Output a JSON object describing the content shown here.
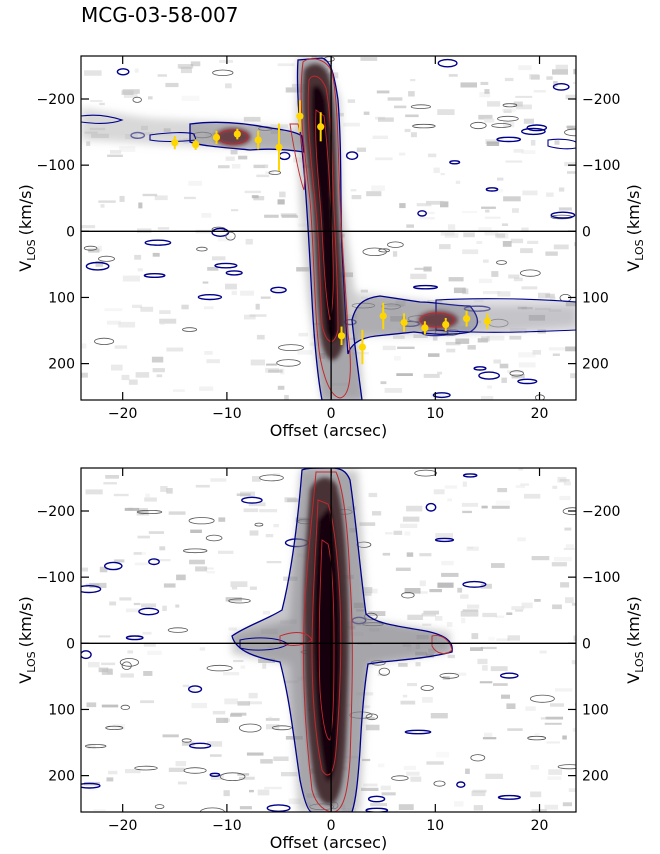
{
  "figure_title": "MCG-03-58-007",
  "colors": {
    "contour_outer": "#00008b",
    "contour_inner": "#c0282c",
    "contour_noise": "#555555",
    "points": "#ffd700",
    "axes": "#000000"
  },
  "chart_data": [
    {
      "type": "heatmap",
      "panel": "top",
      "xlabel": "Offset (arcsec)",
      "ylabel": "V_LOS (km/s)",
      "ylabel_main": "V",
      "ylabel_sub": "LOS",
      "ylabel_unit": "(km/s)",
      "xlim": [
        -24,
        23.5
      ],
      "ylim": [
        -265,
        255
      ],
      "y_inverted": true,
      "xticks": [
        -20,
        -10,
        0,
        10,
        20
      ],
      "xtick_labels": [
        "−20",
        "−10",
        "0",
        "10",
        "20"
      ],
      "yticks": [
        -200,
        -100,
        0,
        100,
        200
      ],
      "ytick_labels": [
        "−200",
        "−100",
        "0",
        "100",
        "200"
      ],
      "reference_lines": {
        "x": 0,
        "y": 0
      },
      "points": {
        "x": [
          -15,
          -13,
          -11,
          -9,
          -7,
          -5,
          -3,
          -1,
          1,
          3,
          5,
          7,
          9,
          11,
          13,
          15
        ],
        "y": [
          -134,
          -131,
          -142,
          -147,
          -138,
          -127,
          -174,
          -158,
          158,
          175,
          128,
          138,
          146,
          141,
          132,
          136
        ],
        "yerr": [
          10,
          8,
          10,
          8,
          14,
          36,
          24,
          22,
          14,
          26,
          20,
          14,
          10,
          10,
          12,
          12
        ]
      }
    },
    {
      "type": "heatmap",
      "panel": "bottom",
      "xlabel": "Offset (arcsec)",
      "ylabel": "V_LOS (km/s)",
      "ylabel_main": "V",
      "ylabel_sub": "LOS",
      "ylabel_unit": "(km/s)",
      "xlim": [
        -24,
        23.5
      ],
      "ylim": [
        -265,
        255
      ],
      "y_inverted": true,
      "xticks": [
        -20,
        -10,
        0,
        10,
        20
      ],
      "xtick_labels": [
        "−20",
        "−10",
        "0",
        "10",
        "20"
      ],
      "yticks": [
        -200,
        -100,
        0,
        100,
        200
      ],
      "ytick_labels": [
        "−200",
        "−100",
        "0",
        "100",
        "200"
      ],
      "reference_lines": {
        "x": 0,
        "y": 0
      }
    }
  ]
}
